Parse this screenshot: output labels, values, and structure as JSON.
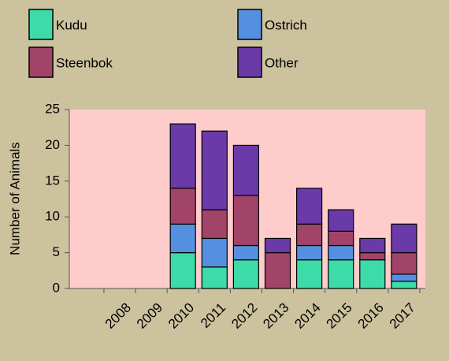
{
  "chart_data": {
    "type": "stacked_bar",
    "y_label": "Number of Animals",
    "categories": [
      "2008",
      "2009",
      "2010",
      "2011",
      "2012",
      "2013",
      "2014",
      "2015",
      "2016",
      "2017"
    ],
    "series": [
      {
        "name": "Kudu",
        "color": "#3ddba8",
        "values": [
          0,
          0,
          5,
          3,
          4,
          0,
          4,
          4,
          4,
          1
        ]
      },
      {
        "name": "Ostrich",
        "color": "#5590e0",
        "values": [
          0,
          0,
          4,
          4,
          2,
          0,
          2,
          2,
          0,
          1
        ]
      },
      {
        "name": "Steenbok",
        "color": "#a14467",
        "values": [
          0,
          0,
          5,
          4,
          7,
          5,
          3,
          2,
          1,
          3
        ]
      },
      {
        "name": "Other",
        "color": "#6a3aa8",
        "values": [
          0,
          0,
          9,
          11,
          7,
          2,
          5,
          3,
          2,
          4
        ]
      }
    ],
    "ylim": [
      0,
      25
    ],
    "yticks": [
      0,
      5,
      10,
      15,
      20,
      25
    ],
    "grid": false
  }
}
